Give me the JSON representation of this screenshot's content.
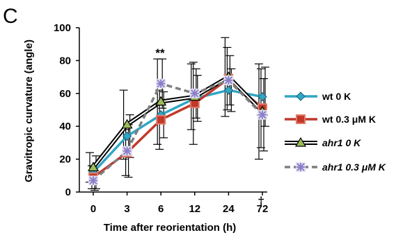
{
  "panel_label": "C",
  "colors": {
    "wt_0K": "#31a6c4",
    "wt_03": "#c0392b",
    "ahr1_0K": "#000000",
    "ahr1_0K_marker": "#9bbb59",
    "ahr1_03": "#7f7f7f",
    "ahr1_03_marker": "#8a7fc8"
  },
  "chart_data": {
    "type": "line",
    "xlabel": "Time after reorientation (h)",
    "ylabel": "Gravitropic curvature (angle)",
    "categories": [
      "0",
      "3",
      "6",
      "12",
      "24",
      "72"
    ],
    "ylim": [
      0,
      100
    ],
    "yticks": [
      0,
      20,
      40,
      60,
      80,
      100
    ],
    "grid": false,
    "legend_position": "right",
    "annotations": [
      "**",
      "†"
    ],
    "series": [
      {
        "name": "wt 0 K",
        "values": [
          12,
          34,
          47,
          57,
          62,
          58
        ],
        "errors": [
          10,
          13,
          14,
          14,
          13,
          18
        ],
        "marker": "diamond",
        "style": "solid"
      },
      {
        "name": "wt 0.3 μM K",
        "values": [
          9,
          24,
          44,
          54,
          69,
          51
        ],
        "errors": [
          7,
          14,
          18,
          25,
          19,
          24
        ],
        "marker": "square",
        "style": "solid"
      },
      {
        "name": "ahr1 0 K",
        "values": [
          15,
          41,
          55,
          58,
          70,
          49
        ],
        "errors": [
          9,
          21,
          26,
          20,
          24,
          29
        ],
        "marker": "triangle",
        "style": "double"
      },
      {
        "name": "ahr1 0.3 μM K",
        "values": [
          7,
          25,
          66,
          60,
          68,
          47
        ],
        "errors": [
          6,
          16,
          15,
          15,
          15,
          22
        ],
        "marker": "star",
        "style": "dashed"
      }
    ]
  }
}
